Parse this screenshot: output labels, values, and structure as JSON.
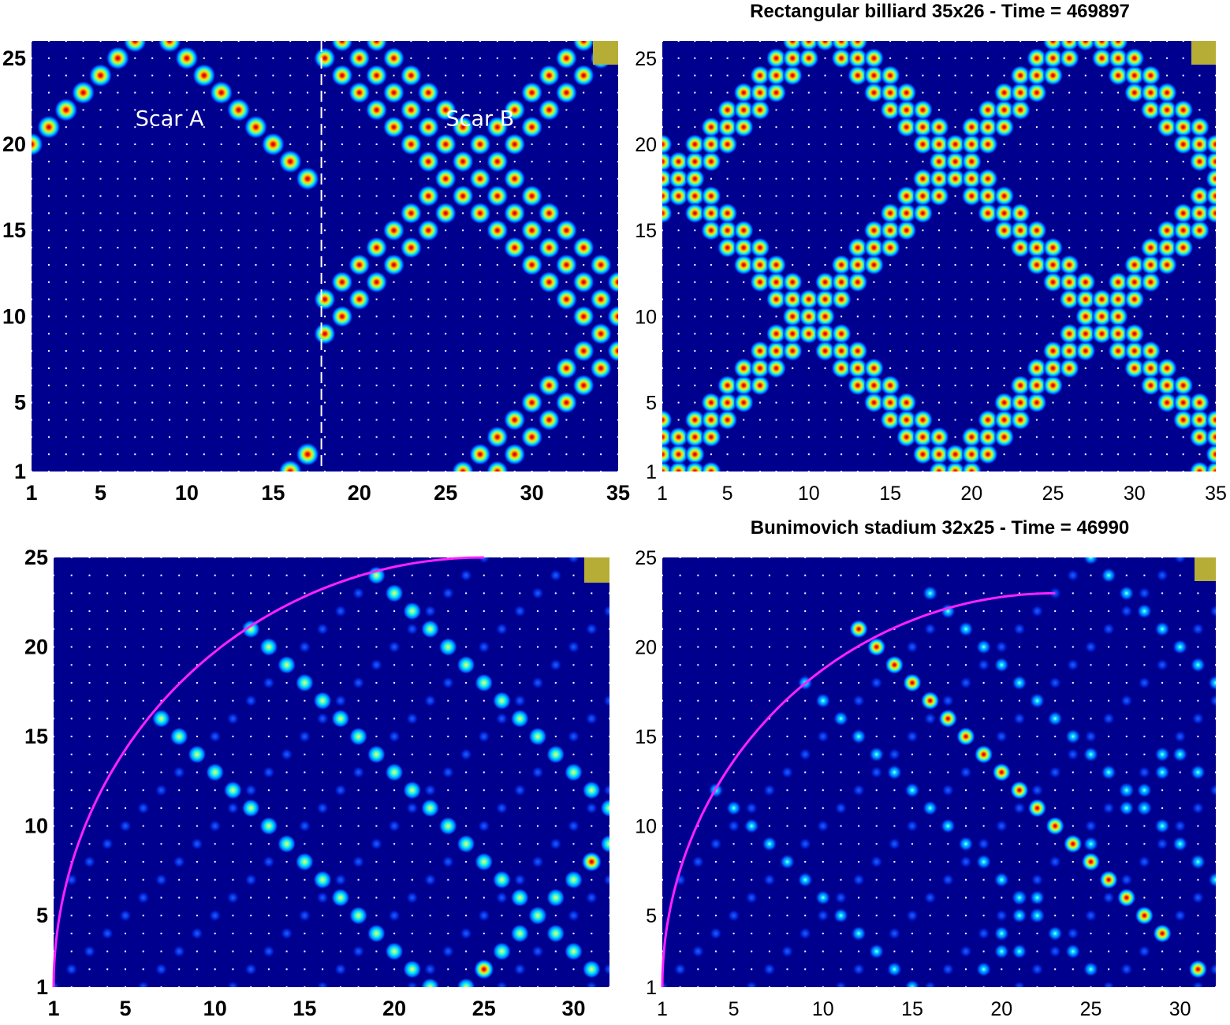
{
  "colors": {
    "background": "#00008f",
    "grid_dot": "#ffffff",
    "marker": "#b5ad35",
    "boundary": "#ff22ff",
    "divider": "#ffffff"
  },
  "chart_data": [
    {
      "type": "heatmap",
      "panel": "top-left",
      "title": "",
      "grid_cols": 35,
      "grid_rows": 26,
      "xticks": [
        "1",
        "5",
        "10",
        "15",
        "20",
        "25",
        "30",
        "35"
      ],
      "yticks": [
        "1",
        "5",
        "10",
        "15",
        "20",
        "25"
      ],
      "divider_x": 17.8,
      "annotations": [
        {
          "text": "Scar A",
          "x": 9,
          "y": 21.5
        },
        {
          "text": "Scar B",
          "x": 27,
          "y": 21.5
        }
      ],
      "scar_a": {
        "x_max": 17.5,
        "period": 34,
        "bands": [
          [
            -1,
            -33,
            0
          ],
          [
            1,
            -15,
            0
          ],
          [
            1,
            19,
            0
          ],
          [
            -1,
            1,
            0
          ],
          [
            -1,
            35,
            0
          ],
          [
            1,
            -49,
            0
          ]
        ],
        "peak_intensity": 1.0
      },
      "scar_b": {
        "x_min": 18,
        "x_max": 35,
        "period": 34,
        "bands": [
          [
            -1,
            9,
            0
          ],
          [
            1,
            -25,
            0
          ],
          [
            1,
            9,
            0
          ],
          [
            -1,
            43,
            0
          ],
          [
            -1,
            45,
            0
          ],
          [
            1,
            -9,
            0
          ],
          [
            1,
            -7,
            0
          ],
          [
            -1,
            47,
            0
          ],
          [
            -1,
            11,
            0
          ],
          [
            1,
            -27,
            0
          ]
        ],
        "peak_intensity": 1.0
      }
    },
    {
      "type": "heatmap",
      "panel": "top-right",
      "title": "Rectangular billiard 35x26  -  Time = 469897",
      "grid_cols": 35,
      "grid_rows": 26,
      "xticks": [
        "1",
        "5",
        "10",
        "15",
        "20",
        "25",
        "30",
        "35"
      ],
      "yticks": [
        "1",
        "5",
        "10",
        "15",
        "20",
        "25"
      ],
      "period": 34,
      "bands": [
        [
          1,
          -1,
          0
        ],
        [
          1,
          0,
          0
        ],
        [
          1,
          1,
          0
        ],
        [
          -1,
          20,
          0
        ],
        [
          -1,
          19,
          0
        ],
        [
          -1,
          21,
          0
        ],
        [
          1,
          -19,
          0
        ],
        [
          1,
          -18,
          0
        ],
        [
          1,
          -17,
          0
        ],
        [
          -1,
          38,
          0
        ],
        [
          -1,
          37,
          0
        ],
        [
          -1,
          39,
          0
        ]
      ],
      "peak_intensity": 1.0
    },
    {
      "type": "heatmap",
      "panel": "bottom-left",
      "title": "",
      "grid_cols": 32,
      "grid_rows": 25,
      "xticks": [
        "1",
        "5",
        "10",
        "15",
        "20",
        "25",
        "30"
      ],
      "yticks": [
        "1",
        "5",
        "10",
        "15",
        "20",
        "25"
      ],
      "boundary": {
        "shape": "quarter-circle",
        "center": [
          25,
          1
        ],
        "radius": 24
      },
      "trajectory": [
        [
          7,
          16
        ],
        [
          8,
          15
        ],
        [
          9,
          14
        ],
        [
          10,
          13
        ],
        [
          11,
          12
        ],
        [
          12,
          11
        ],
        [
          13,
          10
        ],
        [
          14,
          9
        ],
        [
          15,
          8
        ],
        [
          16,
          7
        ],
        [
          17,
          6
        ],
        [
          18,
          5
        ],
        [
          19,
          4
        ],
        [
          20,
          3
        ],
        [
          21,
          2
        ],
        [
          22,
          1
        ],
        [
          12,
          21
        ],
        [
          13,
          20
        ],
        [
          14,
          19
        ],
        [
          15,
          18
        ],
        [
          16,
          17
        ],
        [
          17,
          16
        ],
        [
          18,
          15
        ],
        [
          19,
          14
        ],
        [
          20,
          13
        ],
        [
          21,
          12
        ],
        [
          22,
          11
        ],
        [
          23,
          10
        ],
        [
          24,
          9
        ],
        [
          25,
          8
        ],
        [
          26,
          7
        ],
        [
          27,
          6
        ],
        [
          28,
          5
        ],
        [
          29,
          4
        ],
        [
          30,
          3
        ],
        [
          31,
          2
        ],
        [
          19,
          24
        ],
        [
          20,
          23
        ],
        [
          21,
          22
        ],
        [
          22,
          21
        ],
        [
          23,
          20
        ],
        [
          24,
          19
        ],
        [
          25,
          18
        ],
        [
          26,
          17
        ],
        [
          27,
          16
        ],
        [
          28,
          15
        ],
        [
          29,
          14
        ],
        [
          30,
          13
        ],
        [
          31,
          12
        ],
        [
          32,
          11
        ],
        [
          32,
          9
        ],
        [
          31,
          8
        ],
        [
          30,
          7
        ],
        [
          29,
          6
        ],
        [
          28,
          5
        ],
        [
          27,
          4
        ],
        [
          26,
          3
        ],
        [
          25,
          2
        ],
        [
          24,
          1
        ]
      ],
      "hot_points": [
        [
          31,
          8
        ],
        [
          25,
          2
        ]
      ],
      "peak_intensity": 0.85
    },
    {
      "type": "heatmap",
      "panel": "bottom-right",
      "title": "Bunimovich stadium 32x25  -  Time = 46990",
      "grid_cols": 32,
      "grid_rows": 25,
      "xticks": [
        "1",
        "5",
        "10",
        "15",
        "20",
        "25",
        "30"
      ],
      "yticks": [
        "1",
        "5",
        "10",
        "15",
        "20",
        "25"
      ],
      "boundary": {
        "shape": "quarter-circle",
        "center": [
          23,
          1
        ],
        "radius": 22
      },
      "trajectory": [
        [
          12,
          21
        ],
        [
          13,
          20
        ],
        [
          14,
          19
        ],
        [
          15,
          18
        ],
        [
          16,
          17
        ],
        [
          17,
          16
        ],
        [
          18,
          15
        ],
        [
          19,
          14
        ],
        [
          20,
          13
        ],
        [
          21,
          12
        ],
        [
          22,
          11
        ],
        [
          23,
          10
        ],
        [
          24,
          9
        ],
        [
          25,
          8
        ],
        [
          26,
          7
        ],
        [
          27,
          6
        ],
        [
          28,
          5
        ],
        [
          29,
          4
        ],
        [
          31,
          2
        ],
        [
          25,
          25
        ],
        [
          26,
          24
        ],
        [
          27,
          23
        ],
        [
          28,
          22
        ],
        [
          29,
          21
        ],
        [
          30,
          20
        ],
        [
          31,
          19
        ],
        [
          32,
          18
        ],
        [
          16,
          23
        ],
        [
          17,
          22
        ],
        [
          18,
          21
        ],
        [
          19,
          20
        ],
        [
          20,
          19
        ],
        [
          21,
          18
        ],
        [
          22,
          17
        ],
        [
          23,
          16
        ],
        [
          24,
          15
        ],
        [
          25,
          14
        ],
        [
          26,
          13
        ],
        [
          27,
          12
        ],
        [
          28,
          11
        ],
        [
          29,
          10
        ],
        [
          30,
          9
        ],
        [
          31,
          8
        ],
        [
          32,
          7
        ],
        [
          9,
          18
        ],
        [
          10,
          17
        ],
        [
          11,
          16
        ],
        [
          12,
          15
        ],
        [
          13,
          14
        ],
        [
          14,
          13
        ],
        [
          15,
          12
        ],
        [
          16,
          11
        ],
        [
          17,
          10
        ],
        [
          18,
          9
        ],
        [
          19,
          8
        ],
        [
          20,
          7
        ],
        [
          21,
          6
        ],
        [
          22,
          5
        ],
        [
          23,
          4
        ],
        [
          24,
          3
        ],
        [
          25,
          2
        ],
        [
          4,
          12
        ],
        [
          5,
          11
        ],
        [
          6,
          10
        ],
        [
          7,
          9
        ],
        [
          8,
          8
        ],
        [
          9,
          7
        ],
        [
          10,
          6
        ],
        [
          11,
          5
        ],
        [
          12,
          4
        ],
        [
          13,
          3
        ],
        [
          14,
          2
        ],
        [
          15,
          1
        ],
        [
          25,
          9
        ],
        [
          21,
          6
        ],
        [
          22,
          6
        ],
        [
          21,
          5
        ],
        [
          22,
          5
        ],
        [
          20,
          4
        ],
        [
          20,
          3
        ],
        [
          21,
          3
        ],
        [
          19,
          2
        ],
        [
          27,
          11
        ],
        [
          28,
          11
        ],
        [
          27,
          12
        ],
        [
          28,
          12
        ],
        [
          29,
          14
        ],
        [
          30,
          14
        ],
        [
          29,
          13
        ],
        [
          31,
          13
        ]
      ],
      "hot_points": [
        [
          12,
          21
        ],
        [
          13,
          20
        ],
        [
          14,
          19
        ],
        [
          15,
          18
        ],
        [
          16,
          17
        ],
        [
          17,
          16
        ],
        [
          18,
          15
        ],
        [
          19,
          14
        ],
        [
          20,
          13
        ],
        [
          21,
          12
        ],
        [
          22,
          11
        ],
        [
          23,
          10
        ],
        [
          24,
          9
        ],
        [
          25,
          8
        ],
        [
          26,
          7
        ],
        [
          27,
          6
        ],
        [
          28,
          5
        ],
        [
          29,
          4
        ],
        [
          31,
          2
        ]
      ],
      "peak_intensity": 0.75
    }
  ]
}
